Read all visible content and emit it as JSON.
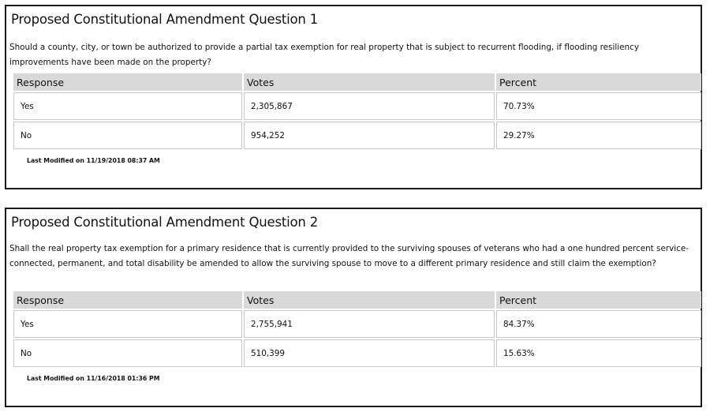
{
  "questions": [
    {
      "title": "Proposed Constitutional Amendment Question 1",
      "text": "Should a county, city, or town be authorized to provide a partial tax exemption for real property that is subject to recurrent flooding, if flooding resiliency improvements have been made on the property?",
      "headers": {
        "response": "Response",
        "votes": "Votes",
        "percent": "Percent"
      },
      "rows": [
        {
          "response": "Yes",
          "votes": "2,305,867",
          "percent": "70.73%"
        },
        {
          "response": "No",
          "votes": "954,252",
          "percent": "29.27%"
        }
      ],
      "last_modified": "Last Modified on 11/19/2018 08:37 AM"
    },
    {
      "title": "Proposed Constitutional Amendment Question 2",
      "text": "Shall the real property tax exemption for a primary residence that is currently provided to the surviving spouses of veterans who had a one hundred percent service-connected, permanent, and total disability be amended to allow the surviving spouse to move to a different primary residence and still claim the exemption?",
      "headers": {
        "response": "Response",
        "votes": "Votes",
        "percent": "Percent"
      },
      "rows": [
        {
          "response": "Yes",
          "votes": "2,755,941",
          "percent": "84.37%"
        },
        {
          "response": "No",
          "votes": "510,399",
          "percent": "15.63%"
        }
      ],
      "last_modified": "Last Modified on 11/16/2018 01:36 PM"
    }
  ]
}
